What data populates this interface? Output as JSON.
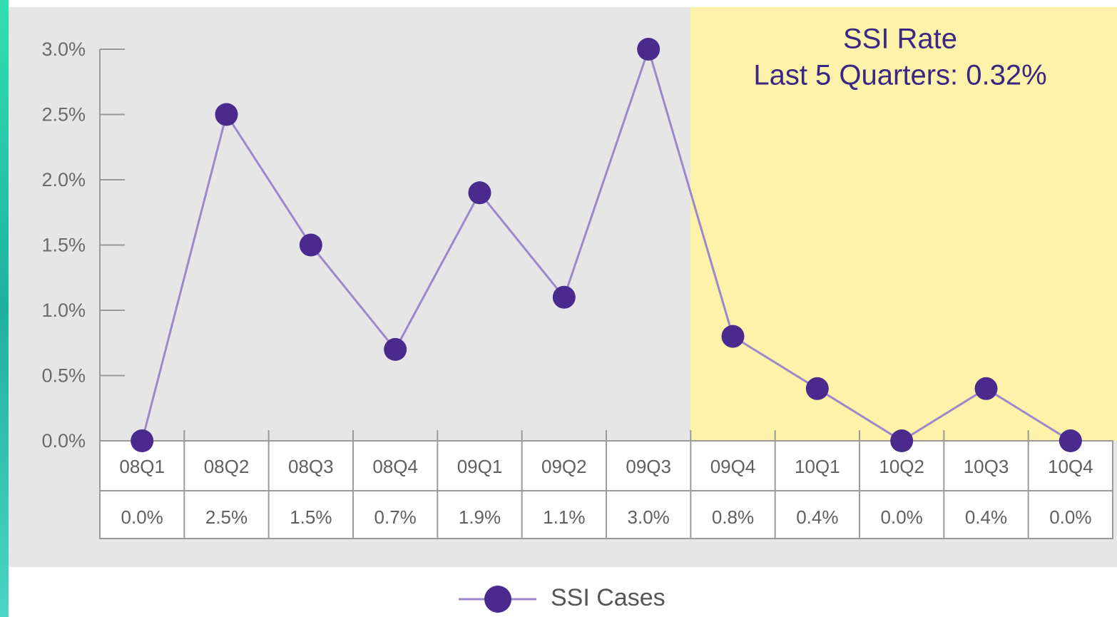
{
  "chart_data": {
    "type": "line",
    "annotations": [
      "SSI Rate",
      "Last 5 Quarters: 0.32%"
    ],
    "categories": [
      "08Q1",
      "08Q2",
      "08Q3",
      "08Q4",
      "09Q1",
      "09Q2",
      "09Q3",
      "09Q4",
      "10Q1",
      "10Q2",
      "10Q3",
      "10Q4"
    ],
    "series": [
      {
        "name": "SSI Cases",
        "color": "#4a2a8c",
        "line_color": "#9c88cb",
        "values": [
          0,
          2.5,
          1.5,
          0.7,
          1.9,
          1.1,
          3.0,
          0.8,
          0.4,
          0,
          0.4,
          0
        ],
        "value_labels": [
          "0.0%",
          "2.5%",
          "1.5%",
          "0.7%",
          "1.9%",
          "1.1%",
          "3.0%",
          "0.8%",
          "0.4%",
          "0.0%",
          "0.4%",
          "0.0%"
        ]
      }
    ],
    "ylim": [
      0,
      3
    ],
    "yticks": [
      {
        "value": 0,
        "label": "0.0%"
      },
      {
        "value": 0.5,
        "label": "0.5%"
      },
      {
        "value": 1,
        "label": "1.0%"
      },
      {
        "value": 1.5,
        "label": "1.5%"
      },
      {
        "value": 2,
        "label": "2.0%"
      },
      {
        "value": 2.5,
        "label": "2.5%"
      },
      {
        "value": 3,
        "label": "3.0%"
      }
    ]
  }
}
